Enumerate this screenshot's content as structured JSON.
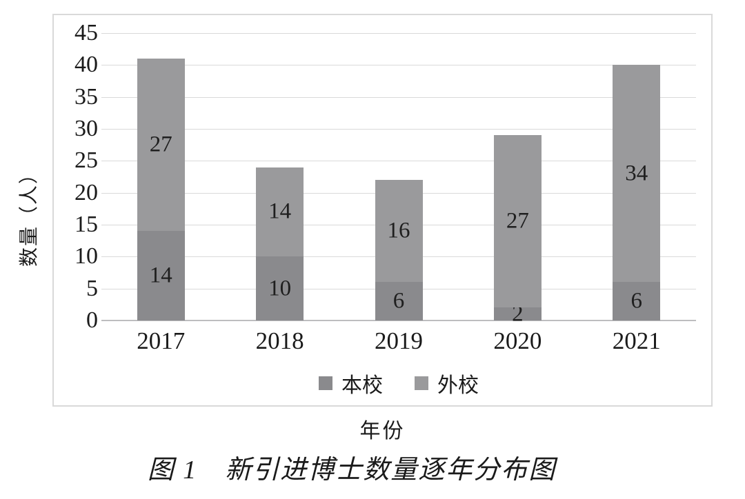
{
  "figure": {
    "caption": "图 1　新引进博士数量逐年分布图",
    "x_axis_title": "年份",
    "y_axis_title": "数量（人）"
  },
  "chart_data": {
    "type": "bar",
    "stacked": true,
    "title": "图 1 新引进博士数量逐年分布图",
    "xlabel": "年份",
    "ylabel": "数量（人）",
    "categories": [
      "2017",
      "2018",
      "2019",
      "2020",
      "2021"
    ],
    "series": [
      {
        "name": "本校",
        "values": [
          14,
          10,
          6,
          2,
          6
        ],
        "color": "#8a8a8d"
      },
      {
        "name": "外校",
        "values": [
          27,
          14,
          16,
          27,
          34
        ],
        "color": "#9a9a9c"
      }
    ],
    "totals": [
      41,
      24,
      22,
      29,
      40
    ],
    "ylim": [
      0,
      45
    ],
    "ytick_step": 5,
    "grid": true,
    "legend_position": "bottom-inside",
    "colors": {
      "gridline": "#d9d9d9",
      "zero_axis": "#bdbdbf",
      "frame_border": "#d9d9d9",
      "text": "#1a1a1a"
    }
  }
}
